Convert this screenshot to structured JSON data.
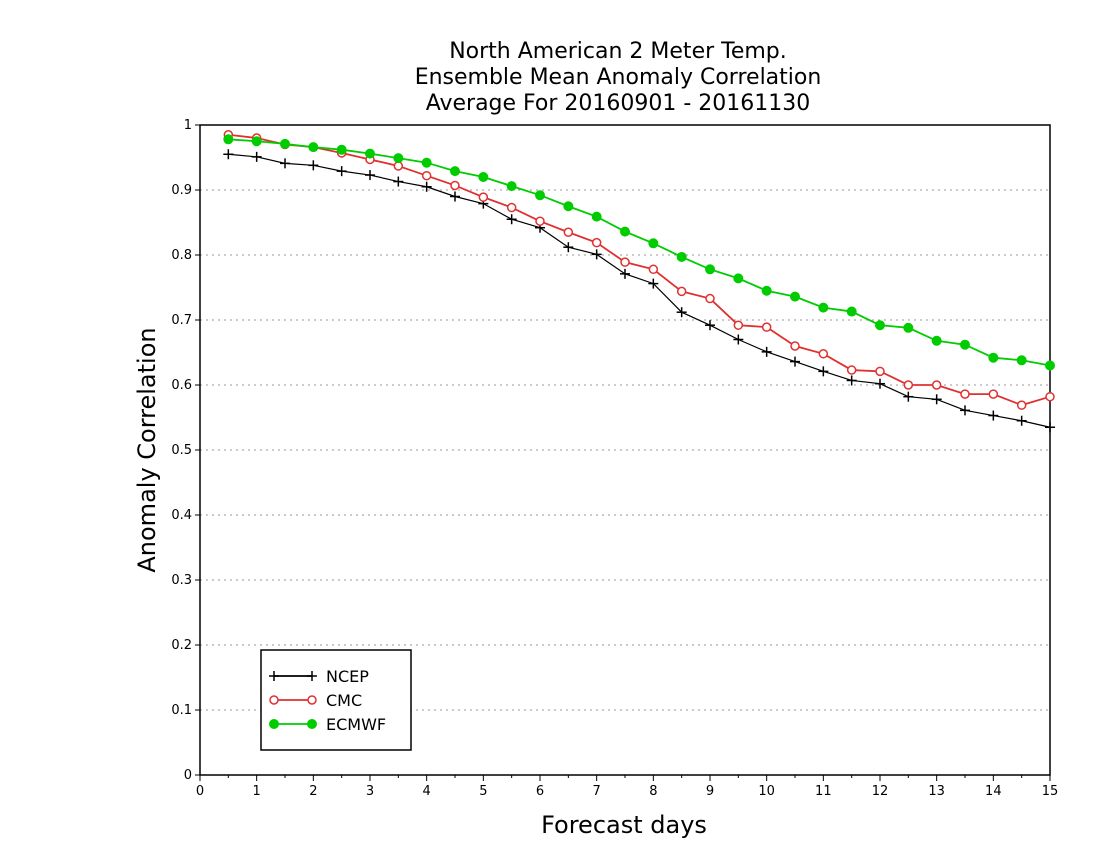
{
  "chart_data": {
    "type": "line",
    "title_lines": [
      "North American 2 Meter Temp.",
      "Ensemble Mean Anomaly Correlation",
      "Average For 20160901 - 20161130"
    ],
    "xlabel": "Forecast days",
    "ylabel": "Anomaly Correlation",
    "xlim": [
      0,
      15
    ],
    "ylim": [
      0,
      1
    ],
    "xticks": [
      "0",
      "1",
      "2",
      "3",
      "4",
      "5",
      "6",
      "7",
      "8",
      "9",
      "10",
      "11",
      "12",
      "13",
      "14",
      "15"
    ],
    "yticks": [
      "0",
      "0.1",
      "0.2",
      "0.3",
      "0.4",
      "0.5",
      "0.6",
      "0.7",
      "0.8",
      "0.9",
      "1"
    ],
    "grid": true,
    "legend_position": "bottom-left",
    "x": [
      0.5,
      1,
      1.5,
      2,
      2.5,
      3,
      3.5,
      4,
      4.5,
      5,
      5.5,
      6,
      6.5,
      7,
      7.5,
      8,
      8.5,
      9,
      9.5,
      10,
      10.5,
      11,
      11.5,
      12,
      12.5,
      13,
      13.5,
      14,
      14.5,
      15
    ],
    "series": [
      {
        "name": "NCEP",
        "color": "#000000",
        "marker": "plus",
        "values": [
          0.955,
          0.951,
          0.941,
          0.938,
          0.929,
          0.923,
          0.913,
          0.905,
          0.89,
          0.879,
          0.855,
          0.842,
          0.812,
          0.801,
          0.771,
          0.756,
          0.712,
          0.692,
          0.67,
          0.651,
          0.636,
          0.621,
          0.607,
          0.602,
          0.582,
          0.578,
          0.561,
          0.553,
          0.545,
          0.535
        ]
      },
      {
        "name": "CMC",
        "color": "#e03030",
        "marker": "open-circle",
        "values": [
          0.985,
          0.98,
          0.97,
          0.966,
          0.957,
          0.947,
          0.937,
          0.922,
          0.907,
          0.889,
          0.873,
          0.852,
          0.835,
          0.819,
          0.789,
          0.778,
          0.744,
          0.733,
          0.692,
          0.689,
          0.66,
          0.648,
          0.623,
          0.621,
          0.6,
          0.6,
          0.586,
          0.586,
          0.569,
          0.582
        ]
      },
      {
        "name": "ECMWF",
        "color": "#00cc00",
        "marker": "filled-circle",
        "values": [
          0.978,
          0.975,
          0.971,
          0.966,
          0.962,
          0.956,
          0.949,
          0.942,
          0.929,
          0.92,
          0.906,
          0.892,
          0.875,
          0.859,
          0.836,
          0.818,
          0.797,
          0.778,
          0.764,
          0.745,
          0.736,
          0.719,
          0.713,
          0.692,
          0.688,
          0.668,
          0.662,
          0.642,
          0.638,
          0.63
        ]
      }
    ]
  }
}
